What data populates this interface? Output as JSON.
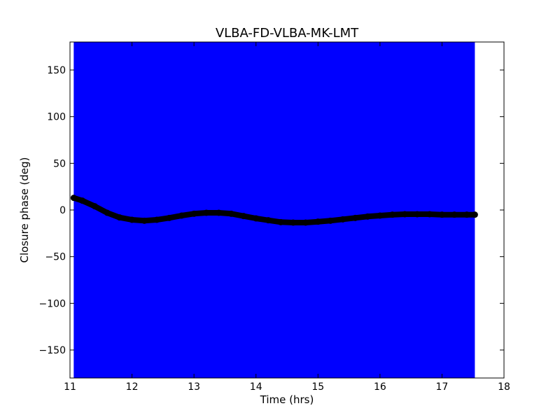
{
  "chart_data": {
    "type": "scatter",
    "title": "VLBA-FD-VLBA-MK-LMT",
    "xlabel": "Time (hrs)",
    "ylabel": "Closure phase (deg)",
    "xlim": [
      11,
      18
    ],
    "ylim": [
      -180,
      180
    ],
    "xticks": [
      11,
      12,
      13,
      14,
      15,
      16,
      17,
      18
    ],
    "xtick_labels": [
      "11",
      "12",
      "13",
      "14",
      "15",
      "16",
      "17",
      "18"
    ],
    "yticks": [
      150,
      100,
      50,
      0,
      -50,
      -100,
      -150
    ],
    "ytick_labels": [
      "150",
      "100",
      "50",
      "0",
      "−50",
      "−100",
      "−150"
    ],
    "grid": false,
    "errorbar_band": {
      "color": "#0000ff",
      "x_range": [
        11.06,
        17.53
      ],
      "y_range": [
        -180,
        180
      ]
    },
    "series": [
      {
        "marker": "circle",
        "color": "#000000",
        "points": [
          [
            11.06,
            13
          ],
          [
            11.2,
            10
          ],
          [
            11.4,
            4
          ],
          [
            11.6,
            -3
          ],
          [
            11.8,
            -8
          ],
          [
            12.0,
            -10.5
          ],
          [
            12.2,
            -11.5
          ],
          [
            12.4,
            -10.5
          ],
          [
            12.6,
            -8.5
          ],
          [
            12.8,
            -6
          ],
          [
            13.0,
            -4
          ],
          [
            13.2,
            -3
          ],
          [
            13.4,
            -3
          ],
          [
            13.6,
            -4
          ],
          [
            13.8,
            -6.5
          ],
          [
            14.0,
            -9
          ],
          [
            14.2,
            -11
          ],
          [
            14.4,
            -13
          ],
          [
            14.6,
            -13.5
          ],
          [
            14.8,
            -13.5
          ],
          [
            15.0,
            -12.5
          ],
          [
            15.2,
            -11.5
          ],
          [
            15.4,
            -10
          ],
          [
            15.6,
            -8.5
          ],
          [
            15.8,
            -7
          ],
          [
            16.0,
            -6
          ],
          [
            16.2,
            -5
          ],
          [
            16.4,
            -4.5
          ],
          [
            16.6,
            -4.5
          ],
          [
            16.8,
            -4.5
          ],
          [
            17.0,
            -5
          ],
          [
            17.2,
            -5
          ],
          [
            17.4,
            -5
          ],
          [
            17.53,
            -5
          ]
        ]
      }
    ]
  }
}
